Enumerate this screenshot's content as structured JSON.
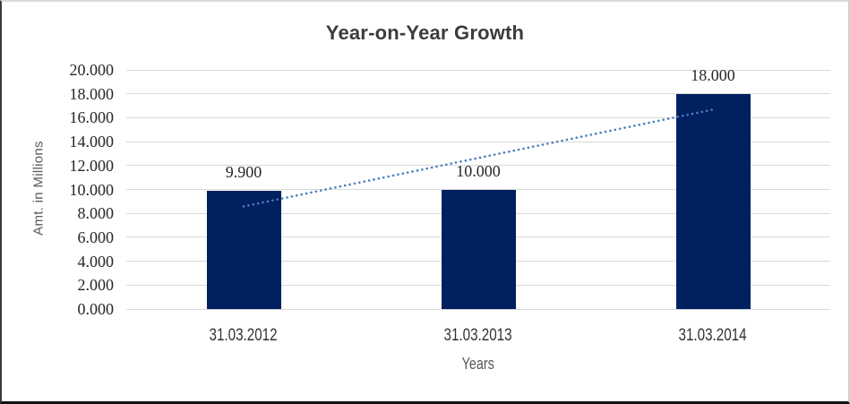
{
  "chart_data": {
    "type": "bar",
    "title": "Year-on-Year Growth",
    "categories": [
      "31.03.2012",
      "31.03.2013",
      "31.03.2014"
    ],
    "values": [
      9.9,
      10.0,
      18.0
    ],
    "data_labels": [
      "9.900",
      "10.000",
      "18.000"
    ],
    "xlabel": "Years",
    "ylabel": "Amt. in Millions",
    "ylim": [
      0,
      20
    ],
    "ytick_labels": [
      "20.000",
      "18.000",
      "16.000",
      "14.000",
      "12.000",
      "10.000",
      "8.000",
      "6.000",
      "4.000",
      "2.000",
      "0.000"
    ],
    "grid": true,
    "legend": false,
    "bar_color": "#002060",
    "gridline_color": "#d9d9d9",
    "trendline": {
      "type": "linear",
      "style": "dotted",
      "color": "#4a7ebb",
      "start_value": 8.58,
      "end_value": 16.68
    }
  }
}
